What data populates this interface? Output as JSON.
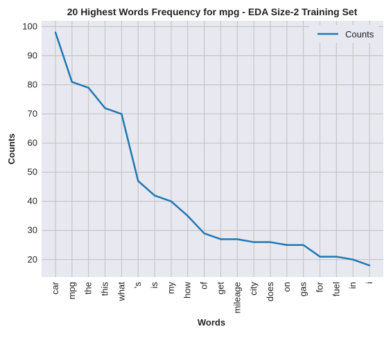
{
  "chart_data": {
    "type": "line",
    "title": "20 Highest Words Frequency for mpg - EDA Size-2 Training Set",
    "xlabel": "Words",
    "ylabel": "Counts",
    "categories": [
      "car",
      "mpg",
      "the",
      "this",
      "what",
      "'s",
      "is",
      "my",
      "how",
      "of",
      "get",
      "mileage",
      "city",
      "does",
      "on",
      "gas",
      "for",
      "fuel",
      "in",
      "i"
    ],
    "series": [
      {
        "name": "Counts",
        "color": "#1f77b4",
        "values": [
          98,
          81,
          79,
          72,
          70,
          47,
          42,
          40,
          35,
          29,
          27,
          27,
          26,
          26,
          25,
          25,
          21,
          21,
          20,
          18
        ]
      }
    ],
    "yticks": [
      20,
      30,
      40,
      50,
      60,
      70,
      80,
      90,
      100
    ],
    "ylim": [
      14,
      102
    ],
    "grid": true,
    "legend_position": "top-right",
    "plot_background": "#e8e8f0",
    "grid_color": "#c0c0c0"
  }
}
